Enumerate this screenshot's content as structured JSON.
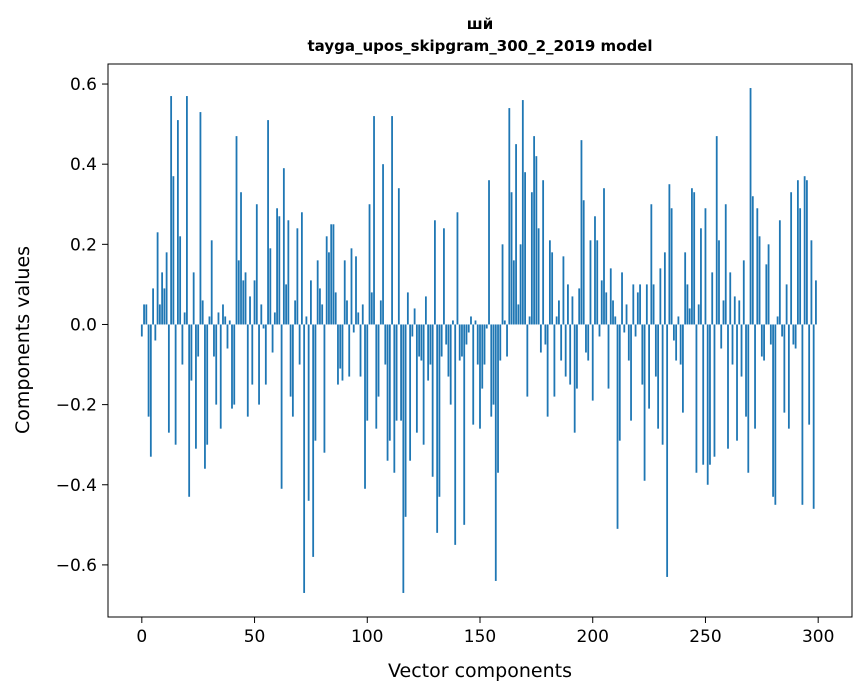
{
  "chart_data": {
    "type": "bar",
    "title_line1": "шй",
    "title_line2": "tayga_upos_skipgram_300_2_2019 model",
    "xlabel": "Vector components",
    "ylabel": "Components values",
    "xlim": [
      -15,
      315
    ],
    "ylim": [
      -0.73,
      0.65
    ],
    "xticks": [
      0,
      50,
      100,
      150,
      200,
      250,
      300
    ],
    "yticks": [
      -0.6,
      -0.4,
      -0.2,
      0.0,
      0.2,
      0.4,
      0.6
    ],
    "ytick_labels": [
      "−0.6",
      "−0.4",
      "−0.2",
      "0.0",
      "0.2",
      "0.4",
      "0.6"
    ],
    "bar_color": "#1f77b4",
    "grid": false,
    "x": "0..299 (component index)",
    "values": [
      -0.03,
      0.05,
      0.05,
      -0.23,
      -0.33,
      0.09,
      -0.04,
      0.23,
      0.05,
      0.13,
      0.09,
      0.18,
      -0.27,
      0.57,
      0.37,
      -0.3,
      0.51,
      0.22,
      -0.1,
      0.03,
      0.57,
      -0.43,
      -0.14,
      0.13,
      -0.31,
      -0.08,
      0.53,
      0.06,
      -0.36,
      -0.3,
      0.02,
      0.21,
      -0.08,
      -0.2,
      0.03,
      -0.26,
      0.05,
      0.02,
      -0.06,
      0.01,
      -0.21,
      -0.2,
      0.47,
      0.16,
      0.33,
      0.11,
      0.13,
      -0.23,
      0.07,
      -0.15,
      0.11,
      0.3,
      -0.2,
      0.05,
      -0.01,
      -0.15,
      0.51,
      0.19,
      -0.07,
      0.03,
      0.29,
      0.27,
      -0.41,
      0.39,
      0.1,
      0.26,
      -0.18,
      -0.23,
      0.06,
      0.24,
      -0.1,
      0.28,
      -0.67,
      0.02,
      -0.44,
      0.11,
      -0.58,
      -0.29,
      0.16,
      0.09,
      0.05,
      -0.32,
      0.22,
      0.18,
      0.25,
      0.25,
      0.08,
      -0.15,
      -0.11,
      -0.14,
      0.16,
      0.06,
      -0.13,
      0.19,
      -0.02,
      0.17,
      0.03,
      -0.13,
      0.05,
      -0.41,
      -0.24,
      0.3,
      0.08,
      0.52,
      -0.26,
      -0.18,
      0.06,
      0.4,
      -0.1,
      -0.34,
      -0.29,
      0.52,
      -0.37,
      -0.24,
      0.34,
      -0.24,
      -0.67,
      -0.48,
      0.08,
      -0.34,
      -0.03,
      0.04,
      -0.27,
      -0.08,
      -0.09,
      -0.3,
      0.07,
      -0.14,
      -0.1,
      -0.38,
      0.26,
      -0.52,
      -0.43,
      -0.08,
      0.24,
      -0.05,
      -0.13,
      -0.2,
      0.01,
      -0.55,
      0.28,
      -0.09,
      -0.08,
      -0.5,
      -0.05,
      -0.02,
      0.02,
      -0.25,
      0.01,
      -0.1,
      -0.26,
      -0.16,
      -0.1,
      -0.01,
      0.36,
      -0.23,
      -0.2,
      -0.64,
      -0.37,
      -0.09,
      0.2,
      0.01,
      -0.08,
      0.54,
      0.33,
      0.16,
      0.45,
      0.05,
      0.2,
      0.56,
      0.38,
      -0.18,
      0.02,
      0.33,
      0.47,
      0.42,
      0.24,
      -0.07,
      0.36,
      -0.05,
      -0.23,
      0.21,
      0.18,
      -0.18,
      0.02,
      0.06,
      -0.09,
      0.17,
      -0.13,
      0.1,
      -0.15,
      0.07,
      -0.27,
      -0.16,
      0.09,
      0.46,
      0.31,
      -0.07,
      -0.09,
      0.21,
      -0.19,
      0.27,
      0.21,
      -0.03,
      0.11,
      0.34,
      0.08,
      -0.16,
      0.14,
      0.06,
      0.02,
      -0.51,
      -0.29,
      0.13,
      -0.02,
      0.05,
      -0.09,
      -0.24,
      0.1,
      -0.03,
      0.08,
      0.1,
      -0.15,
      -0.39,
      0.1,
      -0.21,
      0.3,
      0.1,
      -0.13,
      -0.26,
      0.14,
      -0.3,
      0.18,
      -0.63,
      0.35,
      0.29,
      -0.04,
      -0.09,
      0.02,
      -0.1,
      -0.22,
      0.18,
      0.1,
      0.04,
      0.34,
      0.33,
      -0.37,
      0.05,
      0.24,
      -0.35,
      0.29,
      -0.4,
      -0.35,
      0.13,
      -0.33,
      0.47,
      0.21,
      -0.06,
      0.06,
      0.3,
      -0.31,
      0.13,
      -0.1,
      0.07,
      -0.29,
      0.06,
      -0.13,
      0.16,
      -0.23,
      -0.37,
      0.59,
      0.32,
      -0.26,
      0.29,
      0.22,
      -0.08,
      -0.09,
      0.15,
      0.2,
      -0.05,
      -0.43,
      -0.45,
      0.02,
      0.26,
      -0.03,
      -0.22,
      0.1,
      -0.26,
      0.33,
      -0.05,
      -0.06,
      0.36,
      0.29,
      -0.45,
      0.37,
      0.36,
      -0.25,
      0.21,
      -0.46,
      0.11
    ]
  }
}
